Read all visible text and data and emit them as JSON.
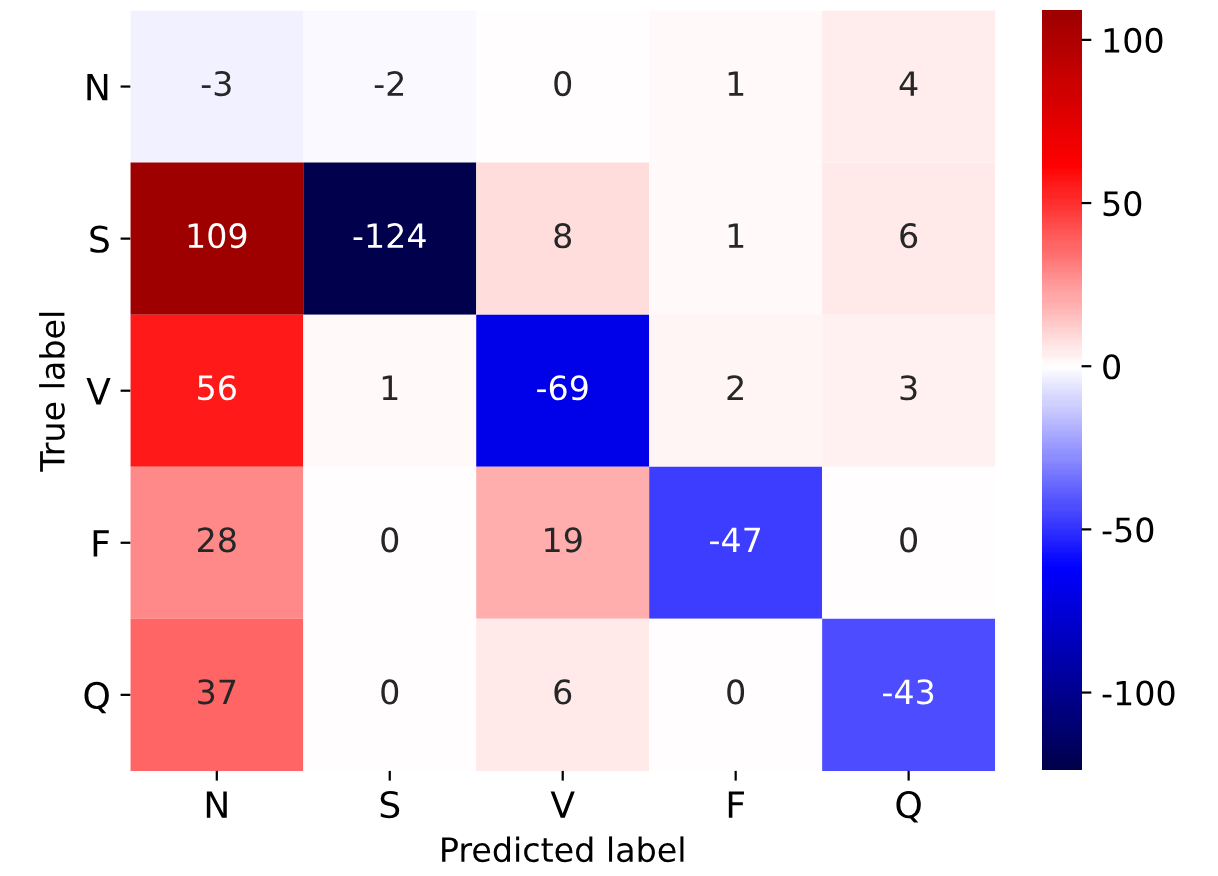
{
  "chart_data": {
    "type": "heatmap",
    "xlabel": "Predicted label",
    "ylabel": "True label",
    "categories": [
      "N",
      "S",
      "V",
      "F",
      "Q"
    ],
    "y_categories": [
      "N",
      "S",
      "V",
      "F",
      "Q"
    ],
    "cells": [
      [
        -3,
        -2,
        0,
        1,
        4
      ],
      [
        109,
        -124,
        8,
        1,
        6
      ],
      [
        56,
        1,
        -69,
        2,
        3
      ],
      [
        28,
        0,
        19,
        -47,
        0
      ],
      [
        37,
        0,
        6,
        0,
        -43
      ]
    ],
    "clim": [
      -124,
      109
    ],
    "cticks": [
      -100,
      -50,
      0,
      50,
      100
    ],
    "data_labels": true
  }
}
